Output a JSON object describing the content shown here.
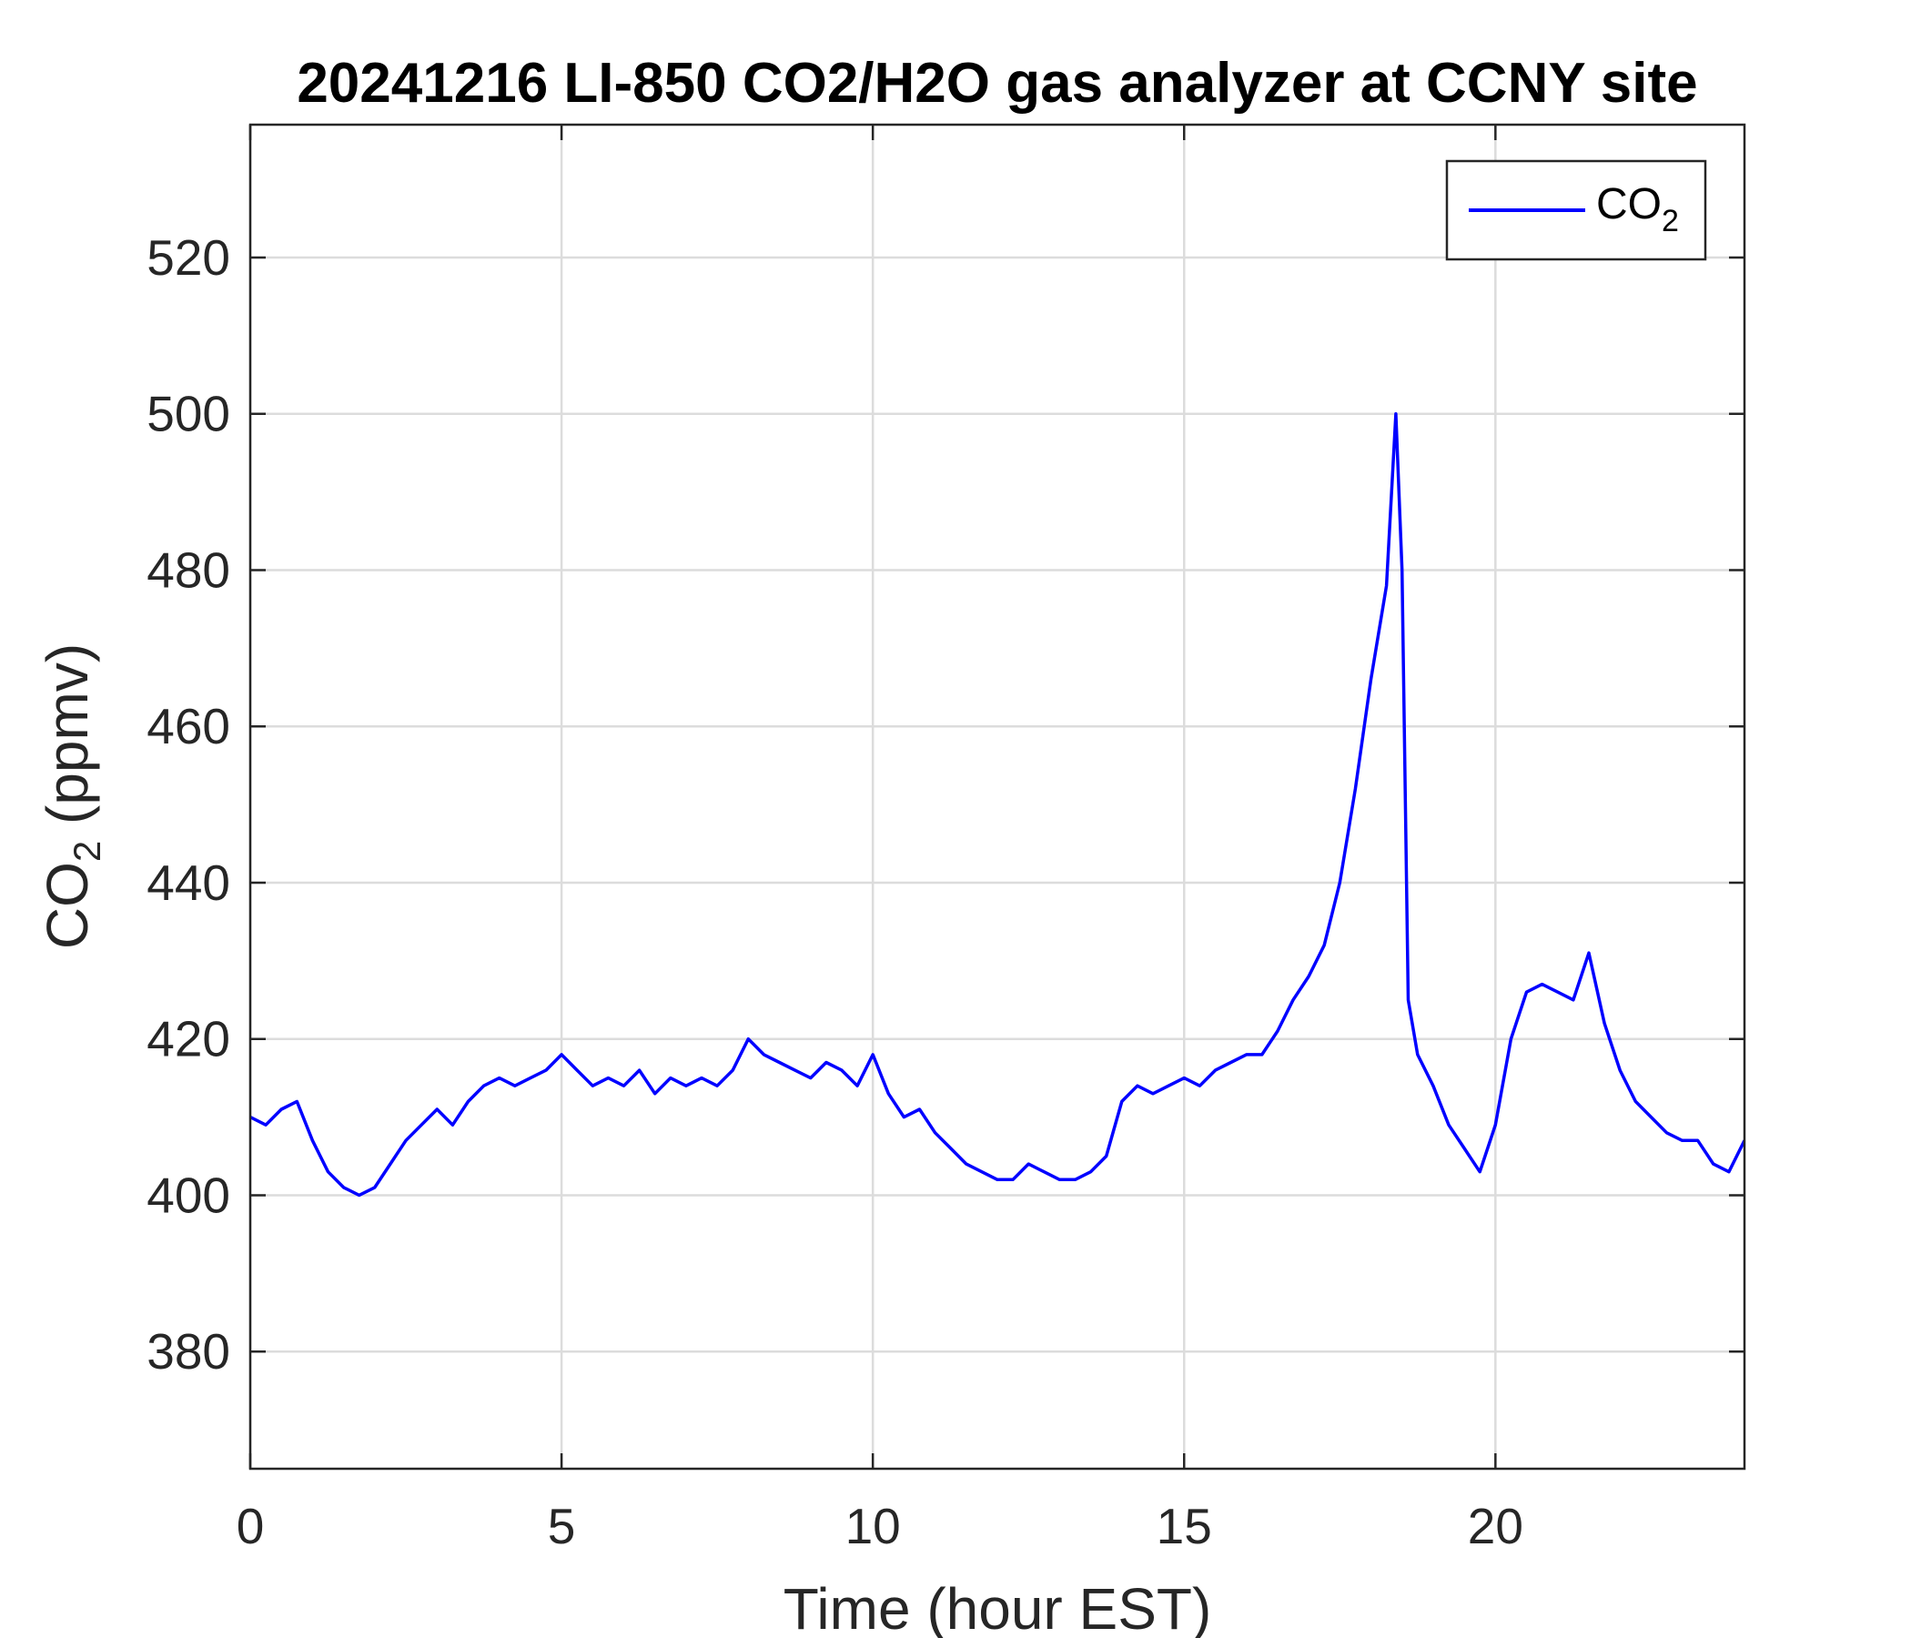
{
  "chart_data": {
    "type": "line",
    "title": "20241216 LI-850 CO2/H2O gas analyzer at CCNY site",
    "xlabel": "Time (hour EST)",
    "ylabel": {
      "base": "CO",
      "sub": "2",
      "rest": " (ppmv)"
    },
    "xlim": [
      0,
      24
    ],
    "ylim": [
      365,
      537
    ],
    "xticks": [
      0,
      5,
      10,
      15,
      20
    ],
    "yticks": [
      380,
      400,
      420,
      440,
      460,
      480,
      500,
      520
    ],
    "grid": true,
    "legend_position": "top-right",
    "series": [
      {
        "name": {
          "base": "CO",
          "sub": "2"
        },
        "color": "#0000ff",
        "x": [
          0.0,
          0.25,
          0.5,
          0.75,
          1.0,
          1.25,
          1.5,
          1.75,
          2.0,
          2.25,
          2.5,
          2.75,
          3.0,
          3.25,
          3.5,
          3.75,
          4.0,
          4.25,
          4.5,
          4.75,
          5.0,
          5.25,
          5.5,
          5.75,
          6.0,
          6.25,
          6.5,
          6.75,
          7.0,
          7.25,
          7.5,
          7.75,
          8.0,
          8.25,
          8.5,
          8.75,
          9.0,
          9.25,
          9.5,
          9.75,
          10.0,
          10.25,
          10.5,
          10.75,
          11.0,
          11.25,
          11.5,
          11.75,
          12.0,
          12.25,
          12.5,
          12.75,
          13.0,
          13.25,
          13.5,
          13.75,
          14.0,
          14.25,
          14.5,
          14.75,
          15.0,
          15.25,
          15.5,
          15.75,
          16.0,
          16.25,
          16.5,
          16.75,
          17.0,
          17.25,
          17.5,
          17.75,
          18.0,
          18.25,
          18.4,
          18.5,
          18.6,
          18.75,
          19.0,
          19.25,
          19.5,
          19.75,
          20.0,
          20.25,
          20.5,
          20.75,
          21.0,
          21.25,
          21.5,
          21.75,
          22.0,
          22.25,
          22.5,
          22.75,
          23.0,
          23.25,
          23.5,
          23.75,
          24.0
        ],
        "values": [
          410,
          409,
          411,
          412,
          407,
          403,
          401,
          400,
          401,
          404,
          407,
          409,
          411,
          409,
          412,
          414,
          415,
          414,
          415,
          416,
          418,
          416,
          414,
          415,
          414,
          416,
          413,
          415,
          414,
          415,
          414,
          416,
          420,
          418,
          417,
          416,
          415,
          417,
          416,
          414,
          418,
          413,
          410,
          411,
          408,
          406,
          404,
          403,
          402,
          402,
          404,
          403,
          402,
          402,
          403,
          405,
          412,
          414,
          413,
          414,
          415,
          414,
          416,
          417,
          418,
          418,
          421,
          425,
          428,
          432,
          440,
          452,
          466,
          478,
          500,
          480,
          425,
          418,
          414,
          409,
          406,
          403,
          409,
          420,
          426,
          427,
          426,
          425,
          431,
          422,
          416,
          412,
          410,
          408,
          407,
          407,
          404,
          403,
          407
        ]
      }
    ]
  }
}
